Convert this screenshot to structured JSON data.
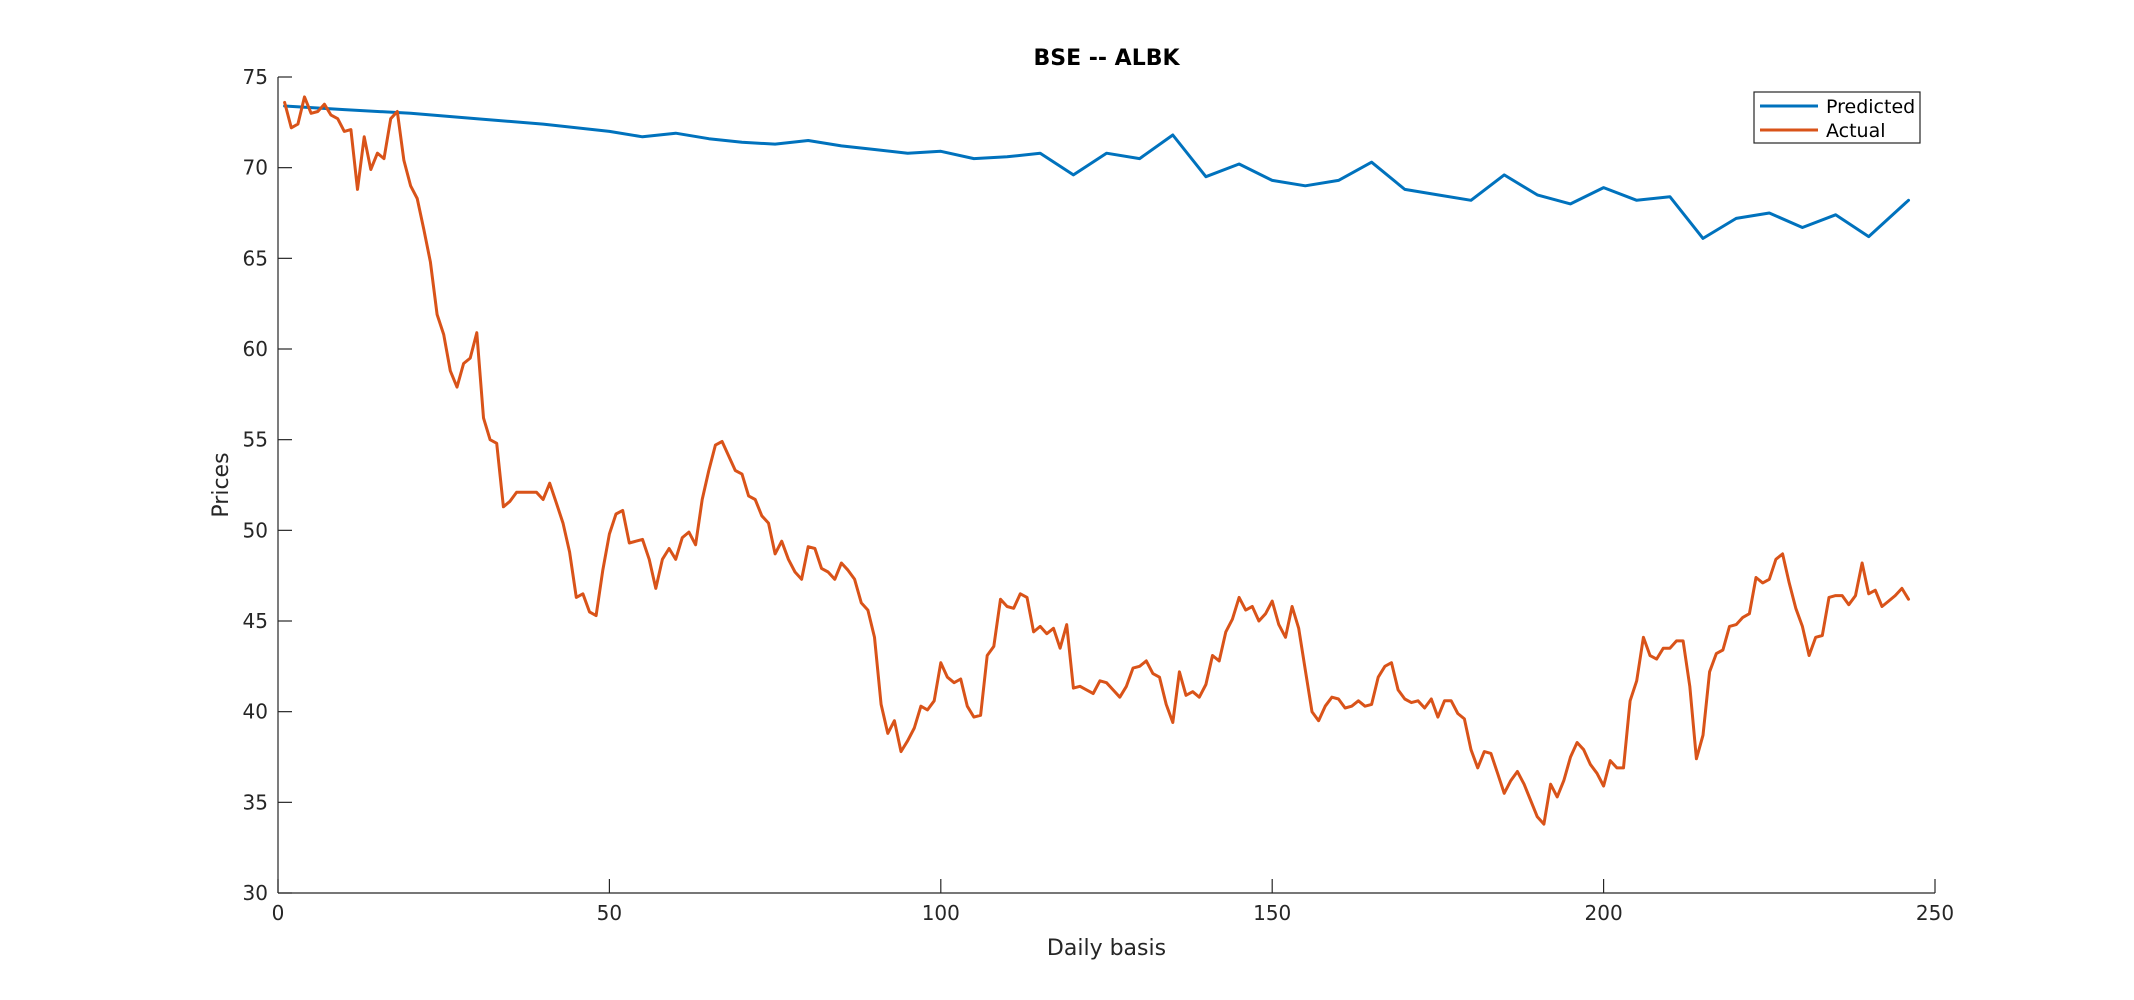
{
  "chart_data": {
    "type": "line",
    "title": "BSE -- ALBK",
    "xlabel": "Daily basis",
    "ylabel": "Prices",
    "xlim": [
      0,
      250
    ],
    "ylim": [
      30,
      75
    ],
    "xticks": [
      0,
      50,
      100,
      150,
      200,
      250
    ],
    "yticks": [
      30,
      35,
      40,
      45,
      50,
      55,
      60,
      65,
      70,
      75
    ],
    "grid": false,
    "legend_position": "top-right",
    "colors": {
      "Predicted": "#0072BD",
      "Actual": "#D95319"
    },
    "series": [
      {
        "name": "Predicted",
        "x": [
          1,
          10,
          20,
          30,
          40,
          50,
          55,
          60,
          65,
          70,
          75,
          80,
          85,
          90,
          95,
          100,
          105,
          110,
          115,
          120,
          125,
          130,
          135,
          140,
          145,
          150,
          155,
          160,
          165,
          170,
          175,
          180,
          185,
          190,
          195,
          200,
          205,
          210,
          215,
          220,
          225,
          230,
          235,
          240,
          246
        ],
        "y": [
          73.4,
          73.2,
          73.0,
          72.7,
          72.4,
          72.0,
          71.7,
          71.9,
          71.6,
          71.4,
          71.3,
          71.5,
          71.2,
          71.0,
          70.8,
          70.9,
          70.5,
          70.6,
          70.8,
          69.6,
          70.8,
          70.5,
          71.8,
          69.5,
          70.2,
          69.3,
          69.0,
          69.3,
          70.3,
          68.8,
          68.5,
          68.2,
          69.6,
          68.5,
          68.0,
          68.9,
          68.2,
          68.4,
          66.1,
          67.2,
          67.5,
          66.7,
          67.4,
          66.2,
          68.2
        ]
      },
      {
        "name": "Actual",
        "x": [
          1,
          2,
          3,
          4,
          5,
          6,
          7,
          8,
          9,
          10,
          11,
          12,
          13,
          14,
          15,
          16,
          17,
          18,
          19,
          20,
          21,
          22,
          23,
          24,
          25,
          26,
          27,
          28,
          29,
          30,
          31,
          32,
          33,
          34,
          35,
          36,
          37,
          38,
          39,
          40,
          41,
          42,
          43,
          44,
          45,
          46,
          47,
          48,
          49,
          50,
          51,
          52,
          53,
          54,
          55,
          56,
          57,
          58,
          59,
          60,
          61,
          62,
          63,
          64,
          65,
          66,
          67,
          68,
          69,
          70,
          71,
          72,
          73,
          74,
          75,
          76,
          77,
          78,
          79,
          80,
          81,
          82,
          83,
          84,
          85,
          86,
          87,
          88,
          89,
          90,
          91,
          92,
          93,
          94,
          95,
          96,
          97,
          98,
          99,
          100,
          101,
          102,
          103,
          104,
          105,
          106,
          107,
          108,
          109,
          110,
          111,
          112,
          113,
          114,
          115,
          116,
          117,
          118,
          119,
          120,
          121,
          122,
          123,
          124,
          125,
          126,
          127,
          128,
          129,
          130,
          131,
          132,
          133,
          134,
          135,
          136,
          137,
          138,
          139,
          140,
          141,
          142,
          143,
          144,
          145,
          146,
          147,
          148,
          149,
          150,
          151,
          152,
          153,
          154,
          155,
          156,
          157,
          158,
          159,
          160,
          161,
          162,
          163,
          164,
          165,
          166,
          167,
          168,
          169,
          170,
          171,
          172,
          173,
          174,
          175,
          176,
          177,
          178,
          179,
          180,
          181,
          182,
          183,
          184,
          185,
          186,
          187,
          188,
          189,
          190,
          191,
          192,
          193,
          194,
          195,
          196,
          197,
          198,
          199,
          200,
          201,
          202,
          203,
          204,
          205,
          206,
          207,
          208,
          209,
          210,
          211,
          212,
          213,
          214,
          215,
          216,
          217,
          218,
          219,
          220,
          221,
          222,
          223,
          224,
          225,
          226,
          227,
          228,
          229,
          230,
          231,
          232,
          233,
          234,
          235,
          236,
          237,
          238,
          239,
          240,
          241,
          242,
          243,
          244,
          245,
          246
        ],
        "y": [
          73.6,
          72.2,
          72.4,
          73.9,
          73.0,
          73.1,
          73.5,
          72.9,
          72.7,
          72.0,
          72.1,
          68.8,
          71.7,
          69.9,
          70.8,
          70.5,
          72.7,
          73.1,
          70.4,
          69.0,
          68.3,
          66.6,
          64.8,
          61.9,
          60.8,
          58.8,
          57.9,
          59.2,
          59.5,
          60.9,
          56.2,
          55.0,
          54.8,
          51.3,
          51.6,
          52.1,
          52.1,
          52.1,
          52.1,
          51.7,
          52.6,
          51.5,
          50.4,
          48.8,
          46.3,
          46.5,
          45.5,
          45.3,
          47.8,
          49.8,
          50.9,
          51.1,
          49.3,
          49.4,
          49.5,
          48.4,
          46.8,
          48.4,
          49.0,
          48.4,
          49.6,
          49.9,
          49.2,
          51.7,
          53.3,
          54.7,
          54.9,
          54.1,
          53.3,
          53.1,
          51.9,
          51.7,
          50.8,
          50.4,
          48.7,
          49.4,
          48.4,
          47.7,
          47.3,
          49.1,
          49.0,
          47.9,
          47.7,
          47.3,
          48.2,
          47.8,
          47.3,
          46.0,
          45.6,
          44.1,
          40.4,
          38.8,
          39.5,
          37.8,
          38.4,
          39.1,
          40.3,
          40.1,
          40.6,
          42.7,
          41.9,
          41.6,
          41.8,
          40.3,
          39.7,
          39.8,
          43.1,
          43.6,
          46.2,
          45.8,
          45.7,
          46.5,
          46.3,
          44.4,
          44.7,
          44.3,
          44.6,
          43.5,
          44.8,
          41.3,
          41.4,
          41.2,
          41.0,
          41.7,
          41.6,
          41.2,
          40.8,
          41.4,
          42.4,
          42.5,
          42.8,
          42.1,
          41.9,
          40.4,
          39.4,
          42.2,
          40.9,
          41.1,
          40.8,
          41.5,
          43.1,
          42.8,
          44.4,
          45.1,
          46.3,
          45.6,
          45.8,
          45.0,
          45.4,
          46.1,
          44.8,
          44.1,
          45.8,
          44.6,
          42.3,
          40.0,
          39.5,
          40.3,
          40.8,
          40.7,
          40.2,
          40.3,
          40.6,
          40.3,
          40.4,
          41.9,
          42.5,
          42.7,
          41.2,
          40.7,
          40.5,
          40.6,
          40.2,
          40.7,
          39.7,
          40.6,
          40.6,
          39.9,
          39.6,
          37.9,
          36.9,
          37.8,
          37.7,
          36.6,
          35.5,
          36.2,
          36.7,
          36.0,
          35.1,
          34.2,
          33.8,
          36.0,
          35.3,
          36.2,
          37.5,
          38.3,
          37.9,
          37.1,
          36.6,
          35.9,
          37.3,
          36.9,
          36.9,
          40.6,
          41.7,
          44.1,
          43.1,
          42.9,
          43.5,
          43.5,
          43.9,
          43.9,
          41.4,
          37.4,
          38.7,
          42.2,
          43.2,
          43.4,
          44.7,
          44.8,
          45.2,
          45.4,
          47.4,
          47.1,
          47.3,
          48.4,
          48.7,
          47.1,
          45.7,
          44.7,
          43.1,
          44.1,
          44.2,
          46.3,
          46.4,
          46.4,
          45.9,
          46.4,
          48.2,
          46.5,
          46.7,
          45.8,
          46.1,
          46.4,
          46.8,
          46.2
        ]
      }
    ]
  }
}
